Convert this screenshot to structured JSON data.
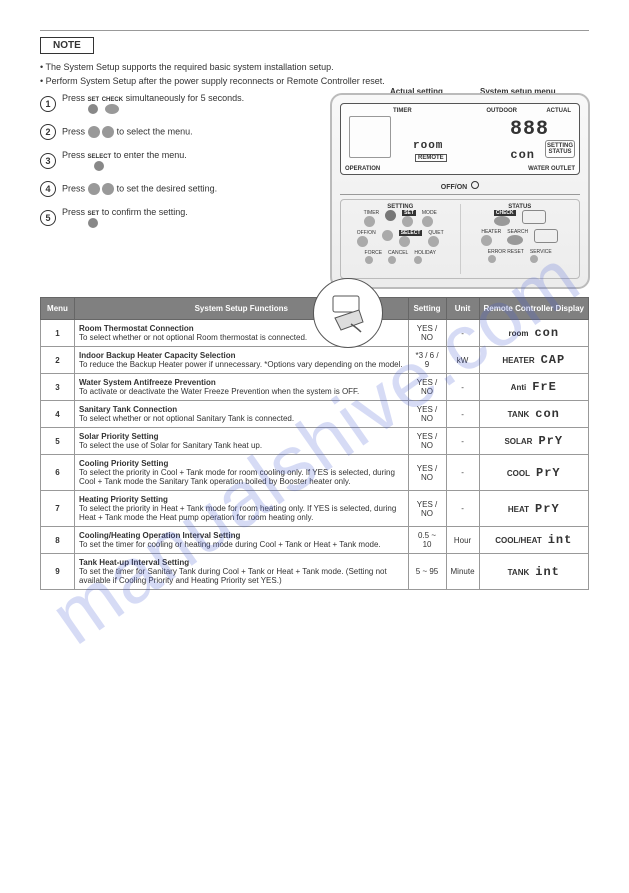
{
  "watermark": "manualshive.com",
  "header": {
    "note_label": "NOTE"
  },
  "intro": {
    "lines": [
      "• The System Setup supports the required basic system installation setup.",
      "• Perform System Setup after the power supply reconnects or Remote Controller reset."
    ]
  },
  "callouts": {
    "actual_setting": "Actual setting",
    "system_setup_menu": "System setup menu"
  },
  "steps": [
    {
      "num": "1",
      "before": "Press",
      "btns": [
        "SET",
        "CHECK"
      ],
      "after": "simultaneously for 5 seconds."
    },
    {
      "num": "2",
      "before": "Press",
      "btns": [
        "▲",
        "▼"
      ],
      "after": "to select the menu."
    },
    {
      "num": "3",
      "before": "Press",
      "btns": [
        "SELECT"
      ],
      "after": "to enter the menu."
    },
    {
      "num": "4",
      "before": "Press",
      "btns": [
        "▲",
        "▼"
      ],
      "after": "to set the desired setting."
    },
    {
      "num": "5",
      "before": "Press",
      "btns": [
        "SET"
      ],
      "after": "to confirm the setting."
    }
  ],
  "remote": {
    "labels": {
      "timer": "TIMER",
      "outdoor": "OUTDOOR",
      "actual": "ACTUAL",
      "remote": "REMOTE",
      "setting_status": "SETTING STATUS",
      "operation": "OPERATION",
      "water_outlet": "WATER OUTLET",
      "off_on": "OFF/ON",
      "setting": "SETTING",
      "status": "STATUS"
    },
    "display": {
      "big_num": "888",
      "line1": "room",
      "line2": "con"
    },
    "buttons": {
      "row1": [
        "TIMER",
        "SET",
        "MODE",
        "CHECK"
      ],
      "row2": [
        "OFF/ON",
        "SELECT",
        "QUIET",
        "HEATER",
        "SEARCH"
      ],
      "row3": [
        "FORCE",
        "CANCEL",
        "HOLIDAY",
        "ERROR RESET",
        "SERVICE"
      ]
    }
  },
  "table": {
    "headers": [
      "Menu",
      "System Setup Functions",
      "Setting",
      "Unit",
      "Remote Controller Display"
    ],
    "rows": [
      {
        "menu": "1",
        "func": "Room Thermostat Connection\nTo select whether or not optional Room thermostat is connected.",
        "setting": "YES / NO",
        "unit": "-",
        "disp_left": "room",
        "disp_right": "con"
      },
      {
        "menu": "2",
        "func": "Indoor Backup Heater Capacity Selection\nTo reduce the Backup Heater power if unnecessary. *Options vary depending on the model.",
        "setting": "*3 / 6 / 9",
        "unit": "kW",
        "disp_left": "HEATER",
        "disp_right": "CAP"
      },
      {
        "menu": "3",
        "func": "Water System Antifreeze Prevention\nTo activate or deactivate the Water Freeze Prevention when the system is OFF.",
        "setting": "YES / NO",
        "unit": "-",
        "disp_left": "Anti",
        "disp_right": "FrE"
      },
      {
        "menu": "4",
        "func": "Sanitary Tank Connection\nTo select whether or not optional Sanitary Tank is connected.",
        "setting": "YES / NO",
        "unit": "-",
        "disp_left": "TANK",
        "disp_right": "con"
      },
      {
        "menu": "5",
        "func": "Solar Priority Setting\nTo select the use of Solar for Sanitary Tank heat up.",
        "setting": "YES / NO",
        "unit": "-",
        "disp_left": "SOLAR",
        "disp_right": "PrY"
      },
      {
        "menu": "6",
        "func": "Cooling Priority Setting\nTo select the priority in Cool + Tank mode for room cooling only.\nIf YES is selected, during Cool + Tank mode the Sanitary Tank operation boiled by Booster heater only.",
        "setting": "YES / NO",
        "unit": "-",
        "disp_left": "COOL",
        "disp_right": "PrY"
      },
      {
        "menu": "7",
        "func": "Heating Priority Setting\nTo select the priority in Heat + Tank mode for room heating only.\nIf YES is selected, during Heat + Tank mode the Heat pump operation for room heating only.",
        "setting": "YES / NO",
        "unit": "-",
        "disp_left": "HEAT",
        "disp_right": "PrY"
      },
      {
        "menu": "8",
        "func": "Cooling/Heating Operation Interval Setting\nTo set the timer for cooling or heating mode during Cool + Tank or Heat + Tank mode.",
        "setting": "0.5 ~ 10",
        "unit": "Hour",
        "disp_left": "COOL/HEAT",
        "disp_right": "int"
      },
      {
        "menu": "9",
        "func": "Tank Heat-up Interval Setting\nTo set the timer for Sanitary Tank during Cool + Tank or Heat + Tank mode. (Setting not available if Cooling Priority and Heating Priority set YES.)",
        "setting": "5 ~ 95",
        "unit": "Minute",
        "disp_left": "TANK",
        "disp_right": "int"
      }
    ]
  }
}
